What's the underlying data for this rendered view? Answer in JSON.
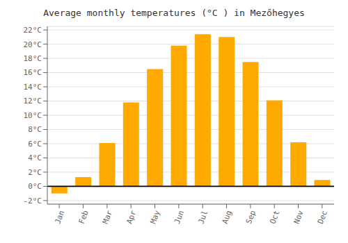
{
  "chart_data": {
    "type": "bar",
    "title": "Average monthly temperatures (°C ) in Mezőhegyes",
    "categories": [
      "Jan",
      "Feb",
      "Mar",
      "Apr",
      "May",
      "Jun",
      "Jul",
      "Aug",
      "Sep",
      "Oct",
      "Nov",
      "Dec"
    ],
    "values": [
      -1.0,
      1.3,
      6.1,
      11.8,
      16.5,
      19.8,
      21.4,
      21.0,
      17.5,
      12.1,
      6.2,
      0.9
    ],
    "color": "#FFAA00",
    "ylim": [
      -2.5,
      22.5
    ],
    "yticks": [
      {
        "value": -2,
        "label": "-2°C"
      },
      {
        "value": 0,
        "label": "0°C"
      },
      {
        "value": 2,
        "label": "2°C"
      },
      {
        "value": 4,
        "label": "4°C"
      },
      {
        "value": 6,
        "label": "6°C"
      },
      {
        "value": 8,
        "label": "8°C"
      },
      {
        "value": 10,
        "label": "10°C"
      },
      {
        "value": 12,
        "label": "12°C"
      },
      {
        "value": 14,
        "label": "14°C"
      },
      {
        "value": 16,
        "label": "16°C"
      },
      {
        "value": 18,
        "label": "18°C"
      },
      {
        "value": 20,
        "label": "20°C"
      },
      {
        "value": 22,
        "label": "22°C"
      }
    ],
    "grid": true
  }
}
